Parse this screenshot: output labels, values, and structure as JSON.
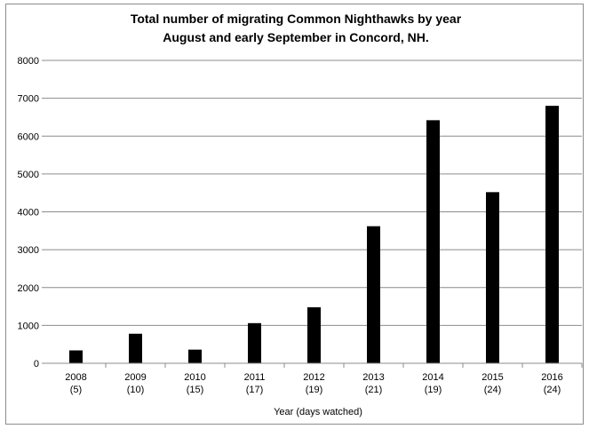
{
  "chart_data": {
    "type": "bar",
    "title": "Total number of migrating Common Nighthawks by year",
    "subtitle": "August and early September in Concord, NH.",
    "xlabel": "Year (days watched)",
    "ylabel": "",
    "categories": [
      "2008",
      "2009",
      "2010",
      "2011",
      "2012",
      "2013",
      "2014",
      "2015",
      "2016"
    ],
    "category_sublabels": [
      "(5)",
      "(10)",
      "(15)",
      "(17)",
      "(19)",
      "(21)",
      "(19)",
      "(24)",
      "(24)"
    ],
    "values": [
      340,
      780,
      360,
      1060,
      1480,
      3620,
      6420,
      4520,
      6800
    ],
    "ylim": [
      0,
      8000
    ],
    "yticks": [
      0,
      1000,
      2000,
      3000,
      4000,
      5000,
      6000,
      7000,
      8000
    ],
    "grid": true,
    "legend": "none",
    "bar_color": "#000000",
    "grid_color": "#8c8c8c"
  }
}
